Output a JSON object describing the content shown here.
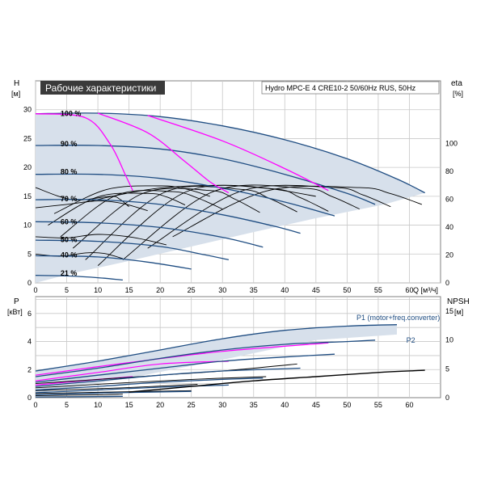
{
  "header": {
    "title": "Рабочие характеристики",
    "model": "Hydro MPC-E 4 CRE10-2 50/60Hz RUS, 50Hz"
  },
  "colors": {
    "envelope": "#d7e0eb",
    "speed_curve": "#1f4d82",
    "system_curve": "#ff00ff",
    "pump_curve": "#000000",
    "grid": "#c8c8c8",
    "title_bg": "#3a3a3a"
  },
  "chart_data": [
    {
      "type": "line",
      "name": "head-chart",
      "xlabel": "Q [м³/ч]",
      "ylabel_left": "H",
      "ylabel_left_unit": "[м]",
      "ylabel_right": "eta",
      "ylabel_right_unit": "[%]",
      "xlim": [
        0,
        65
      ],
      "ylim": [
        0,
        35
      ],
      "ylim_right": [
        0,
        145
      ],
      "grid": true,
      "x_ticks": [
        0,
        5,
        10,
        15,
        20,
        25,
        30,
        35,
        40,
        45,
        50,
        55,
        60
      ],
      "y_ticks": [
        0,
        5,
        10,
        15,
        20,
        25,
        30
      ],
      "y_ticks_right": [
        0,
        20,
        40,
        60,
        80,
        100
      ],
      "speed_labels": [
        {
          "text": "100 %",
          "x": 4,
          "y": 29.5
        },
        {
          "text": "90 %",
          "x": 4,
          "y": 24.2
        },
        {
          "text": "80 %",
          "x": 4,
          "y": 19.4
        },
        {
          "text": "70 %",
          "x": 4,
          "y": 14.7
        },
        {
          "text": "60 %",
          "x": 4,
          "y": 10.7
        },
        {
          "text": "50 %",
          "x": 4,
          "y": 7.6
        },
        {
          "text": "40 %",
          "x": 4,
          "y": 5.0
        },
        {
          "text": "21 %",
          "x": 4,
          "y": 1.8
        }
      ],
      "envelope": [
        [
          0,
          29.3
        ],
        [
          10,
          29.4
        ],
        [
          20,
          28.8
        ],
        [
          30,
          27.2
        ],
        [
          40,
          24.8
        ],
        [
          50,
          21.5
        ],
        [
          58,
          18.0
        ],
        [
          62.5,
          15.6
        ],
        [
          56,
          13.6
        ],
        [
          45,
          11.2
        ],
        [
          35,
          8.8
        ],
        [
          25,
          6.3
        ],
        [
          15,
          3.8
        ],
        [
          6,
          1.7
        ],
        [
          0,
          0
        ]
      ],
      "speed_curves": [
        {
          "percent": 100,
          "points": [
            [
              0,
              29.3
            ],
            [
              10,
              29.4
            ],
            [
              20,
              28.8
            ],
            [
              30,
              27.2
            ],
            [
              40,
              24.8
            ],
            [
              50,
              21.5
            ],
            [
              58,
              18.0
            ],
            [
              62.5,
              15.6
            ]
          ]
        },
        {
          "percent": 90,
          "points": [
            [
              0,
              23.8
            ],
            [
              10,
              23.8
            ],
            [
              20,
              23.2
            ],
            [
              30,
              21.5
            ],
            [
              40,
              18.8
            ],
            [
              50,
              15.5
            ],
            [
              54.5,
              13.6
            ]
          ]
        },
        {
          "percent": 80,
          "points": [
            [
              0,
              18.8
            ],
            [
              10,
              18.8
            ],
            [
              20,
              18.1
            ],
            [
              30,
              16.4
            ],
            [
              40,
              14.0
            ],
            [
              48,
              11.6
            ]
          ]
        },
        {
          "percent": 70,
          "points": [
            [
              0,
              14.4
            ],
            [
              10,
              14.4
            ],
            [
              20,
              13.6
            ],
            [
              30,
              11.8
            ],
            [
              38,
              9.9
            ],
            [
              42.5,
              8.6
            ]
          ]
        },
        {
          "percent": 60,
          "points": [
            [
              0,
              10.6
            ],
            [
              10,
              10.4
            ],
            [
              20,
              9.6
            ],
            [
              30,
              7.9
            ],
            [
              36.5,
              6.2
            ]
          ]
        },
        {
          "percent": 50,
          "points": [
            [
              0,
              7.4
            ],
            [
              10,
              7.2
            ],
            [
              20,
              6.3
            ],
            [
              27,
              4.9
            ],
            [
              31,
              4.0
            ]
          ]
        },
        {
          "percent": 40,
          "points": [
            [
              0,
              4.7
            ],
            [
              10,
              4.5
            ],
            [
              18,
              3.6
            ],
            [
              25,
              2.4
            ]
          ]
        },
        {
          "percent": 21,
          "points": [
            [
              0,
              1.3
            ],
            [
              5,
              1.2
            ],
            [
              10,
              0.9
            ],
            [
              14,
              0.5
            ]
          ]
        }
      ],
      "system_curves": [
        {
          "points": [
            [
              0,
              29.3
            ],
            [
              8,
              28.6
            ],
            [
              12,
              24
            ],
            [
              14.5,
              18.5
            ],
            [
              15.6,
              16.0
            ]
          ]
        },
        {
          "points": [
            [
              10,
              29.4
            ],
            [
              18,
              26
            ],
            [
              24,
              21
            ],
            [
              28,
              17.5
            ],
            [
              31,
              15.6
            ]
          ]
        },
        {
          "points": [
            [
              18,
              29
            ],
            [
              30,
              24.6
            ],
            [
              40,
              19.8
            ],
            [
              47,
              16.0
            ]
          ]
        }
      ]
    },
    {
      "type": "line",
      "name": "power-chart",
      "xlabel": "",
      "ylabel_left": "P",
      "ylabel_left_unit": "[кВт]",
      "ylabel_right": "NPSH",
      "ylabel_right_unit": "[м]",
      "xlim": [
        0,
        65
      ],
      "ylim": [
        0,
        7.2
      ],
      "ylim_right": [
        0,
        17.5
      ],
      "grid": true,
      "y_ticks": [
        0,
        2,
        4,
        6
      ],
      "y_ticks_right": [
        0,
        5,
        10,
        15
      ],
      "legend_labels": [
        {
          "text": "P1 (motor+freq.converter)",
          "x": 51.5,
          "y": 5.7
        },
        {
          "text": "P2",
          "x": 59.5,
          "y": 4.1
        }
      ],
      "envelope": [
        [
          0,
          1.9
        ],
        [
          10,
          2.6
        ],
        [
          20,
          3.4
        ],
        [
          30,
          4.2
        ],
        [
          40,
          4.8
        ],
        [
          50,
          5.1
        ],
        [
          58,
          5.2
        ],
        [
          58,
          4.5
        ],
        [
          45,
          4.1
        ],
        [
          30,
          2.7
        ],
        [
          15,
          1.4
        ],
        [
          0,
          0.3
        ]
      ],
      "p1_curves": [
        {
          "percent": 100,
          "points": [
            [
              0,
              1.9
            ],
            [
              10,
              2.6
            ],
            [
              20,
              3.4
            ],
            [
              30,
              4.2
            ],
            [
              40,
              4.8
            ],
            [
              50,
              5.1
            ],
            [
              58,
              5.2
            ]
          ]
        },
        {
          "percent": 90,
          "points": [
            [
              0,
              1.5
            ],
            [
              10,
              2.1
            ],
            [
              20,
              2.8
            ],
            [
              30,
              3.4
            ],
            [
              40,
              3.8
            ],
            [
              50,
              4.0
            ],
            [
              54.5,
              4.1
            ]
          ]
        },
        {
          "percent": 80,
          "points": [
            [
              0,
              1.1
            ],
            [
              10,
              1.6
            ],
            [
              20,
              2.1
            ],
            [
              30,
              2.6
            ],
            [
              40,
              2.9
            ],
            [
              48,
              3.1
            ]
          ]
        },
        {
          "percent": 70,
          "points": [
            [
              0,
              0.8
            ],
            [
              10,
              1.2
            ],
            [
              20,
              1.6
            ],
            [
              30,
              1.9
            ],
            [
              42.5,
              2.1
            ]
          ]
        },
        {
          "percent": 60,
          "points": [
            [
              0,
              0.55
            ],
            [
              10,
              0.8
            ],
            [
              20,
              1.1
            ],
            [
              30,
              1.3
            ],
            [
              36.5,
              1.4
            ]
          ]
        },
        {
          "percent": 50,
          "points": [
            [
              0,
              0.35
            ],
            [
              10,
              0.55
            ],
            [
              20,
              0.75
            ],
            [
              31,
              0.9
            ]
          ]
        },
        {
          "percent": 40,
          "points": [
            [
              0,
              0.2
            ],
            [
              10,
              0.32
            ],
            [
              25,
              0.45
            ]
          ]
        },
        {
          "percent": 21,
          "points": [
            [
              0,
              0.05
            ],
            [
              10,
              0.08
            ],
            [
              14,
              0.1
            ]
          ]
        }
      ],
      "npsh_curve": {
        "points": [
          [
            15,
            0.4
          ],
          [
            25,
            0.8
          ],
          [
            35,
            1.2
          ],
          [
            45,
            1.5
          ],
          [
            55,
            1.8
          ],
          [
            62.5,
            1.95
          ]
        ]
      }
    }
  ]
}
